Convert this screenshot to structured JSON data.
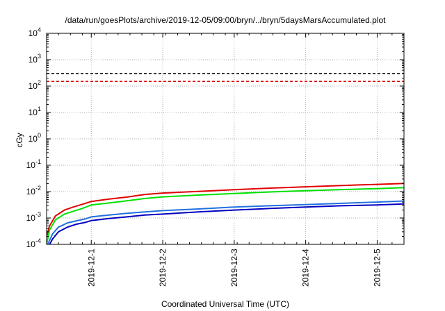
{
  "chart_data": {
    "type": "line",
    "title": "/data/run/goesPlots/archive/2019-12-05/09:00/bryn/../bryn/5daysMarsAccumulated.plot",
    "xlabel": "Coordinated Universal Time (UTC)",
    "ylabel": "cGy",
    "y_scale": "log",
    "ylim": [
      0.0001,
      10000
    ],
    "xlim": [
      "2019-11-30T09:00",
      "2019-12-05T09:00"
    ],
    "grid": true,
    "x_ticks": [
      "2019-12-1",
      "2019-12-2",
      "2019-12-3",
      "2019-12-4",
      "2019-12-5"
    ],
    "y_ticks": [
      {
        "value": 0.0001,
        "base": "10",
        "exp": "-4"
      },
      {
        "value": 0.001,
        "base": "10",
        "exp": "-3"
      },
      {
        "value": 0.01,
        "base": "10",
        "exp": "-2"
      },
      {
        "value": 0.1,
        "base": "10",
        "exp": "-1"
      },
      {
        "value": 1,
        "base": "10",
        "exp": "0"
      },
      {
        "value": 10,
        "base": "10",
        "exp": "1"
      },
      {
        "value": 100,
        "base": "10",
        "exp": "2"
      },
      {
        "value": 1000,
        "base": "10",
        "exp": "3"
      },
      {
        "value": 10000,
        "base": "10",
        "exp": "4"
      }
    ],
    "reference_lines": [
      {
        "y": 300,
        "color": "#000000",
        "style": "dashed"
      },
      {
        "y": 150,
        "color": "#e00000",
        "style": "dashed"
      }
    ],
    "series": [
      {
        "color": "#e00000",
        "x": [
          "2019-11-30T09:00",
          "2019-11-30T10:00",
          "2019-11-30T12:00",
          "2019-11-30T15:00",
          "2019-11-30T18:00",
          "2019-11-30T21:00",
          "2019-12-01T00:00",
          "2019-12-01T06:00",
          "2019-12-01T12:00",
          "2019-12-01T18:00",
          "2019-12-02T00:00",
          "2019-12-02T12:00",
          "2019-12-03T00:00",
          "2019-12-03T12:00",
          "2019-12-04T00:00",
          "2019-12-04T12:00",
          "2019-12-05T00:00",
          "2019-12-05T09:00"
        ],
        "y": [
          0.0002,
          0.0005,
          0.0012,
          0.002,
          0.0026,
          0.0033,
          0.0042,
          0.0052,
          0.0062,
          0.0078,
          0.0088,
          0.0102,
          0.0118,
          0.0135,
          0.0152,
          0.017,
          0.0188,
          0.0205
        ]
      },
      {
        "color": "#00e000",
        "x": [
          "2019-11-30T09:00",
          "2019-11-30T10:00",
          "2019-11-30T12:00",
          "2019-11-30T15:00",
          "2019-11-30T18:00",
          "2019-11-30T21:00",
          "2019-12-01T00:00",
          "2019-12-01T06:00",
          "2019-12-01T12:00",
          "2019-12-01T18:00",
          "2019-12-02T00:00",
          "2019-12-02T12:00",
          "2019-12-03T00:00",
          "2019-12-03T12:00",
          "2019-12-04T00:00",
          "2019-12-04T12:00",
          "2019-12-05T00:00",
          "2019-12-05T09:00"
        ],
        "y": [
          0.0001,
          0.00035,
          0.00085,
          0.0014,
          0.0018,
          0.0023,
          0.0031,
          0.0037,
          0.0045,
          0.0055,
          0.0063,
          0.0074,
          0.0085,
          0.0097,
          0.0108,
          0.0119,
          0.013,
          0.0142
        ]
      },
      {
        "color": "#2070e0",
        "x": [
          "2019-11-30T09:00",
          "2019-11-30T11:00",
          "2019-11-30T13:00",
          "2019-11-30T16:00",
          "2019-11-30T19:00",
          "2019-11-30T22:00",
          "2019-12-01T00:00",
          "2019-12-01T06:00",
          "2019-12-01T12:00",
          "2019-12-01T18:00",
          "2019-12-02T00:00",
          "2019-12-02T12:00",
          "2019-12-03T00:00",
          "2019-12-03T12:00",
          "2019-12-04T00:00",
          "2019-12-04T12:00",
          "2019-12-05T00:00",
          "2019-12-05T09:00"
        ],
        "y": [
          8e-05,
          0.00025,
          0.00045,
          0.00065,
          0.00078,
          0.00092,
          0.0011,
          0.0013,
          0.0015,
          0.0017,
          0.0019,
          0.0022,
          0.0026,
          0.0029,
          0.0032,
          0.0036,
          0.004,
          0.0044
        ]
      },
      {
        "color": "#0000c0",
        "x": [
          "2019-11-30T09:00",
          "2019-11-30T11:00",
          "2019-11-30T13:00",
          "2019-11-30T16:00",
          "2019-11-30T19:00",
          "2019-11-30T22:00",
          "2019-12-01T00:00",
          "2019-12-01T06:00",
          "2019-12-01T12:00",
          "2019-12-01T18:00",
          "2019-12-02T00:00",
          "2019-12-02T12:00",
          "2019-12-03T00:00",
          "2019-12-03T12:00",
          "2019-12-04T00:00",
          "2019-12-04T12:00",
          "2019-12-05T00:00",
          "2019-12-05T09:00"
        ],
        "y": [
          6e-05,
          0.00016,
          0.0003,
          0.00045,
          0.00058,
          0.00068,
          0.0008,
          0.00095,
          0.0011,
          0.0013,
          0.0014,
          0.0017,
          0.002,
          0.0023,
          0.0026,
          0.0029,
          0.0031,
          0.0034
        ]
      }
    ]
  }
}
